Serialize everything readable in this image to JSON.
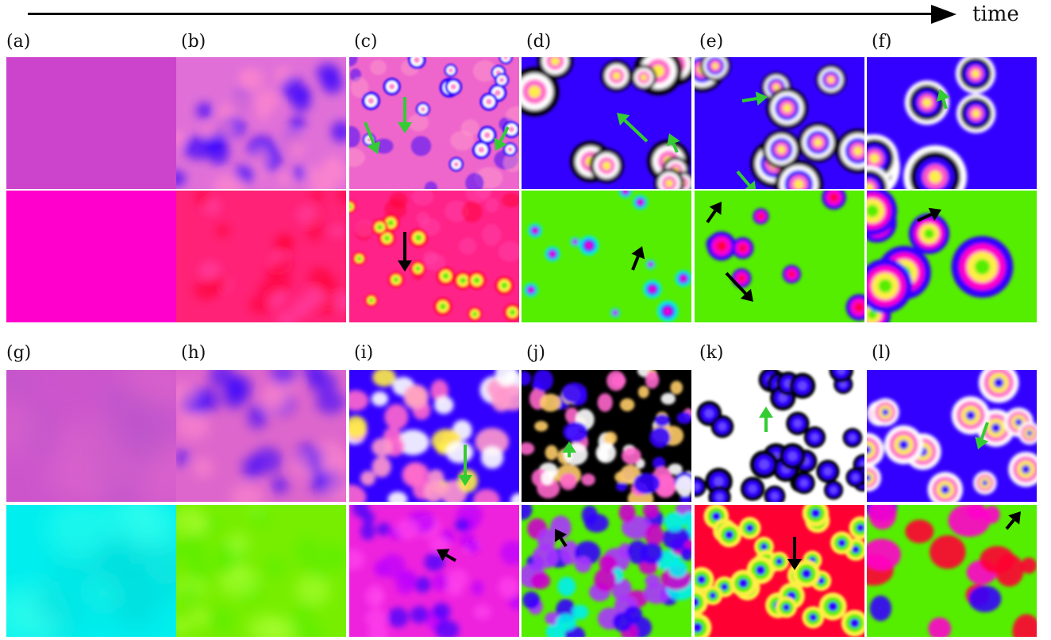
{
  "time_label": "time",
  "top_labels": [
    "(a)",
    "(b)",
    "(c)",
    "(d)",
    "(e)",
    "(f)"
  ],
  "bottom_labels": [
    "(g)",
    "(h)",
    "(i)",
    "(j)",
    "(k)",
    "(l)"
  ],
  "colors": {
    "magenta": "#cc44cc",
    "pink": "#ff66cc",
    "blue": "#3300ff",
    "white": "#ffffff",
    "yellow": "#ffee44",
    "black": "#000000",
    "green": "#55ee00",
    "cyan": "#00eeee",
    "red": "#ff0033",
    "arrow_green": "#33cc33",
    "arrow_black": "#000000"
  }
}
